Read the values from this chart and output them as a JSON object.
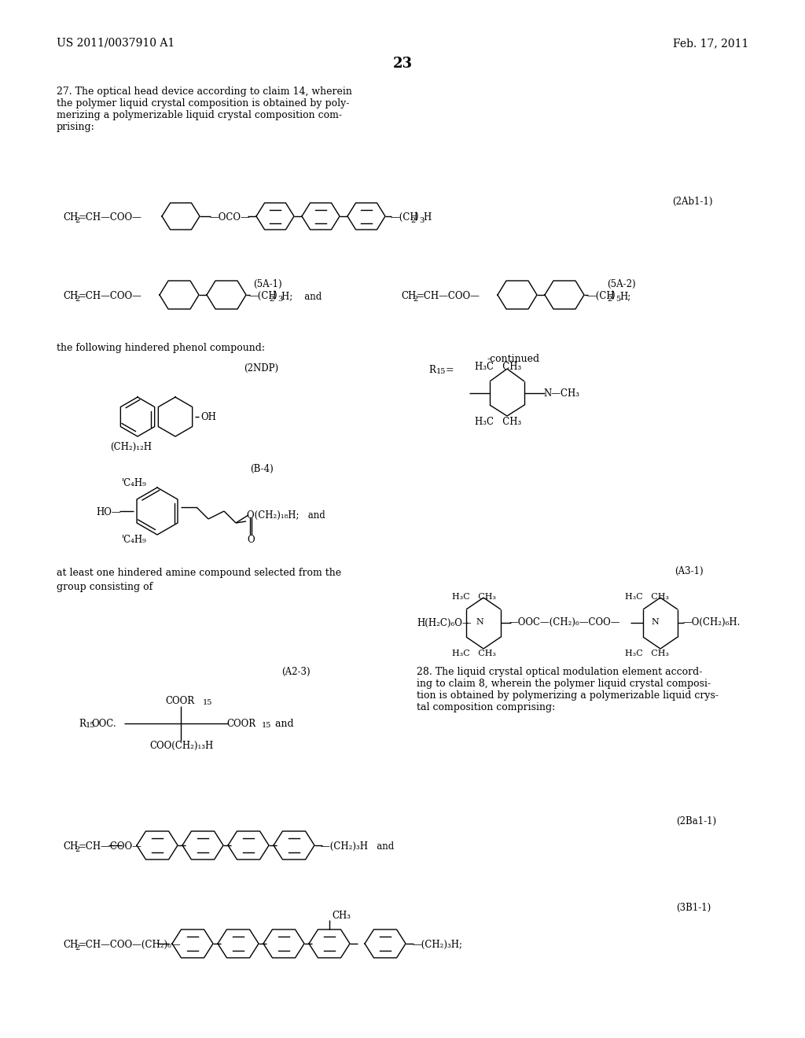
{
  "page_number": "23",
  "header_left": "US 2011/0037910 A1",
  "header_right": "Feb. 17, 2011",
  "background_color": "#ffffff",
  "text_color": "#000000",
  "claim27_text": "27. The optical head device according to claim 14, wherein\nthe polymer liquid crystal composition is obtained by poly-\nmerizing a polymerizable liquid crystal composition com-\nprising:",
  "claim28_text": "28. The liquid crystal optical modulation element accord-\ning to claim 8, wherein the polymer liquid crystal composi-\ntion is obtained by polymerizing a polymerizable liquid crys-\ntal composition comprising:",
  "label_2Ab1_1": "(2Ab1-1)",
  "label_5A_1": "(5A-1)",
  "label_5A_2": "(5A-2)",
  "label_2NDP": "(2NDP)",
  "label_B4": "(B-4)",
  "label_A3_1": "(A3-1)",
  "label_A2_3": "(A2-3)",
  "label_2Ba1_1": "(2Ba1-1)",
  "label_3B1_1": "(3B1-1)",
  "continued_label": "-continued"
}
